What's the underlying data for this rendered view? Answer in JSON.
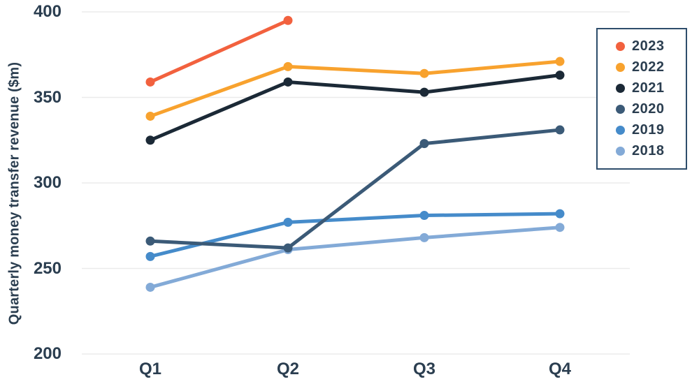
{
  "chart_data": {
    "type": "line",
    "title": "",
    "xlabel": "",
    "ylabel": "Quarterly money transfer revenue ($m)",
    "categories": [
      "Q1",
      "Q2",
      "Q3",
      "Q4"
    ],
    "y_ticks": [
      400,
      350,
      300,
      250,
      200
    ],
    "ylim": [
      200,
      400
    ],
    "grid": "horizontal-only",
    "legend_position": "top-right",
    "series": [
      {
        "name": "2023",
        "color": "#F2613E",
        "values": [
          359,
          395,
          null,
          null
        ]
      },
      {
        "name": "2022",
        "color": "#F8A22E",
        "values": [
          339,
          368,
          364,
          371
        ]
      },
      {
        "name": "2021",
        "color": "#1B2936",
        "values": [
          325,
          359,
          353,
          363
        ]
      },
      {
        "name": "2020",
        "color": "#3B5A77",
        "values": [
          266,
          262,
          323,
          331
        ]
      },
      {
        "name": "2019",
        "color": "#458BCA",
        "values": [
          257,
          277,
          281,
          282
        ]
      },
      {
        "name": "2018",
        "color": "#83AAD7",
        "values": [
          239,
          261,
          268,
          274
        ]
      }
    ]
  },
  "colors": {
    "text": "#2B3E50",
    "gridline": "#EBEBEB",
    "legend_border": "#2E4D6B",
    "background": "#FFFFFF"
  }
}
